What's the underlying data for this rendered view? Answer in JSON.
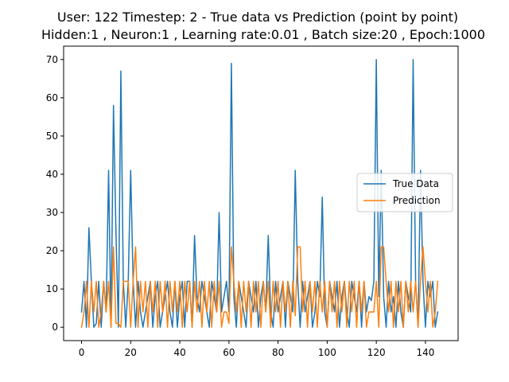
{
  "chart_data": {
    "type": "line",
    "title": "User: 122 Timestep: 2 - True data vs Prediction (point by point)",
    "subtitle": "Hidden:1 , Neuron:1 , Learning rate:0.01 , Batch size:20 , Epoch:1000",
    "xlabel": "",
    "ylabel": "",
    "xlim": [
      -7.3,
      153.3
    ],
    "ylim": [
      -3.5,
      73.5
    ],
    "xticks": [
      0,
      20,
      40,
      60,
      80,
      100,
      120,
      140
    ],
    "yticks": [
      0,
      10,
      20,
      30,
      40,
      50,
      60,
      70
    ],
    "grid": false,
    "legend_position": "center-right",
    "series": [
      {
        "name": "True Data",
        "color": "#1f77b4",
        "values": [
          4,
          12,
          0,
          26,
          12,
          0,
          1,
          12,
          0,
          12,
          4,
          41,
          0,
          58,
          25,
          0,
          67,
          12,
          0,
          12,
          41,
          12,
          0,
          12,
          4,
          0,
          4,
          8,
          12,
          0,
          8,
          12,
          0,
          4,
          8,
          12,
          4,
          0,
          12,
          0,
          8,
          12,
          0,
          12,
          12,
          0,
          24,
          8,
          4,
          12,
          8,
          4,
          0,
          12,
          8,
          4,
          30,
          4,
          8,
          12,
          4,
          69,
          8,
          0,
          12,
          8,
          4,
          0,
          12,
          8,
          4,
          12,
          0,
          8,
          12,
          4,
          24,
          4,
          0,
          12,
          4,
          8,
          12,
          0,
          12,
          8,
          4,
          41,
          12,
          0,
          12,
          4,
          8,
          12,
          0,
          4,
          12,
          8,
          34,
          4,
          0,
          12,
          8,
          4,
          12,
          0,
          8,
          12,
          4,
          0,
          12,
          8,
          4,
          12,
          0,
          12,
          4,
          8,
          7,
          12,
          70,
          8,
          41,
          8,
          0,
          12,
          4,
          8,
          0,
          12,
          4,
          0,
          12,
          8,
          4,
          70,
          12,
          0,
          41,
          12,
          0,
          12,
          8,
          12,
          0,
          4
        ]
      },
      {
        "name": "Prediction",
        "color": "#ff7f0e",
        "values": [
          0,
          4,
          12,
          0,
          12,
          4,
          12,
          0,
          4,
          12,
          4,
          12,
          0,
          21,
          1,
          1,
          0,
          12,
          12,
          12,
          0,
          12,
          21,
          0,
          12,
          4,
          12,
          0,
          12,
          4,
          12,
          0,
          12,
          4,
          12,
          0,
          12,
          4,
          12,
          4,
          12,
          0,
          12,
          4,
          12,
          0,
          12,
          4,
          12,
          0,
          12,
          4,
          12,
          0,
          12,
          4,
          12,
          0,
          4,
          4,
          1,
          21,
          12,
          4,
          12,
          0,
          12,
          4,
          12,
          0,
          12,
          4,
          12,
          0,
          12,
          4,
          12,
          0,
          12,
          4,
          12,
          0,
          12,
          4,
          12,
          0,
          12,
          3,
          21,
          21,
          4,
          12,
          0,
          12,
          4,
          12,
          0,
          12,
          4,
          12,
          0,
          12,
          4,
          12,
          0,
          12,
          4,
          12,
          0,
          12,
          4,
          12,
          0,
          12,
          4,
          12,
          0,
          4,
          4,
          4,
          12,
          0,
          21,
          21,
          12,
          4,
          12,
          0,
          12,
          4,
          12,
          0,
          12,
          4,
          12,
          4,
          12,
          0,
          12,
          21,
          12,
          4,
          12,
          0,
          4,
          12
        ]
      }
    ]
  }
}
